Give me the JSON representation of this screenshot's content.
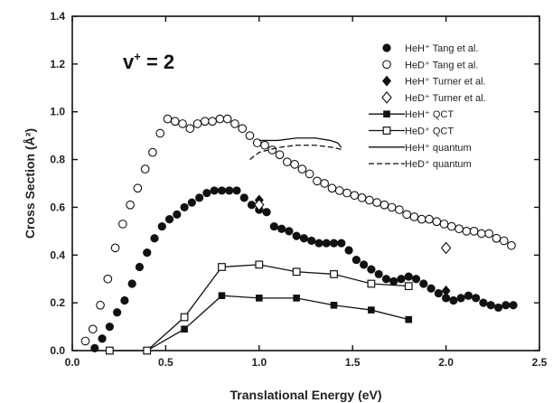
{
  "chart_data": {
    "type": "scatter",
    "title": "",
    "annotation": {
      "base": "v",
      "sup": "+",
      "rest": " = 2"
    },
    "xlabel": "Translational Energy (eV)",
    "ylabel": "Cross Section (Å²)",
    "xlim": [
      0.0,
      2.5
    ],
    "ylim": [
      0.0,
      1.4
    ],
    "xticks": [
      "0.0",
      "0.5",
      "1.0",
      "1.5",
      "2.0",
      "2.5"
    ],
    "yticks": [
      "0.0",
      "0.2",
      "0.4",
      "0.6",
      "0.8",
      "1.0",
      "1.2",
      "1.4"
    ],
    "grid": false,
    "legend_position": "top-right",
    "series": [
      {
        "name": "HeH⁺ Tang et al.",
        "marker": "filled-circle",
        "points": [
          [
            0.12,
            0.01
          ],
          [
            0.16,
            0.05
          ],
          [
            0.2,
            0.1
          ],
          [
            0.24,
            0.16
          ],
          [
            0.28,
            0.21
          ],
          [
            0.32,
            0.28
          ],
          [
            0.36,
            0.35
          ],
          [
            0.4,
            0.41
          ],
          [
            0.44,
            0.47
          ],
          [
            0.48,
            0.52
          ],
          [
            0.52,
            0.55
          ],
          [
            0.56,
            0.57
          ],
          [
            0.6,
            0.6
          ],
          [
            0.64,
            0.62
          ],
          [
            0.68,
            0.64
          ],
          [
            0.72,
            0.66
          ],
          [
            0.76,
            0.67
          ],
          [
            0.8,
            0.67
          ],
          [
            0.84,
            0.67
          ],
          [
            0.88,
            0.67
          ],
          [
            0.92,
            0.64
          ],
          [
            0.96,
            0.61
          ],
          [
            1.0,
            0.59
          ],
          [
            1.04,
            0.58
          ],
          [
            1.08,
            0.52
          ],
          [
            1.12,
            0.51
          ],
          [
            1.16,
            0.5
          ],
          [
            1.2,
            0.48
          ],
          [
            1.24,
            0.47
          ],
          [
            1.28,
            0.46
          ],
          [
            1.32,
            0.45
          ],
          [
            1.36,
            0.45
          ],
          [
            1.4,
            0.45
          ],
          [
            1.44,
            0.45
          ],
          [
            1.48,
            0.42
          ],
          [
            1.52,
            0.38
          ],
          [
            1.56,
            0.36
          ],
          [
            1.6,
            0.34
          ],
          [
            1.64,
            0.32
          ],
          [
            1.68,
            0.3
          ],
          [
            1.72,
            0.29
          ],
          [
            1.76,
            0.3
          ],
          [
            1.8,
            0.31
          ],
          [
            1.84,
            0.3
          ],
          [
            1.88,
            0.28
          ],
          [
            1.92,
            0.26
          ],
          [
            1.96,
            0.24
          ],
          [
            2.0,
            0.22
          ],
          [
            2.04,
            0.21
          ],
          [
            2.08,
            0.22
          ],
          [
            2.12,
            0.23
          ],
          [
            2.16,
            0.22
          ],
          [
            2.2,
            0.2
          ],
          [
            2.24,
            0.19
          ],
          [
            2.28,
            0.18
          ],
          [
            2.32,
            0.19
          ],
          [
            2.36,
            0.19
          ]
        ]
      },
      {
        "name": "HeD⁺ Tang et al.",
        "marker": "open-circle",
        "points": [
          [
            0.07,
            0.04
          ],
          [
            0.11,
            0.09
          ],
          [
            0.15,
            0.19
          ],
          [
            0.19,
            0.3
          ],
          [
            0.23,
            0.43
          ],
          [
            0.27,
            0.53
          ],
          [
            0.31,
            0.61
          ],
          [
            0.35,
            0.68
          ],
          [
            0.39,
            0.76
          ],
          [
            0.43,
            0.83
          ],
          [
            0.47,
            0.91
          ],
          [
            0.51,
            0.97
          ],
          [
            0.55,
            0.96
          ],
          [
            0.59,
            0.95
          ],
          [
            0.63,
            0.93
          ],
          [
            0.67,
            0.95
          ],
          [
            0.71,
            0.96
          ],
          [
            0.75,
            0.96
          ],
          [
            0.79,
            0.97
          ],
          [
            0.83,
            0.97
          ],
          [
            0.87,
            0.95
          ],
          [
            0.91,
            0.93
          ],
          [
            0.95,
            0.9
          ],
          [
            0.99,
            0.87
          ],
          [
            1.03,
            0.86
          ],
          [
            1.07,
            0.84
          ],
          [
            1.11,
            0.82
          ],
          [
            1.15,
            0.79
          ],
          [
            1.19,
            0.78
          ],
          [
            1.23,
            0.76
          ],
          [
            1.27,
            0.74
          ],
          [
            1.31,
            0.71
          ],
          [
            1.35,
            0.7
          ],
          [
            1.39,
            0.68
          ],
          [
            1.43,
            0.67
          ],
          [
            1.47,
            0.66
          ],
          [
            1.51,
            0.65
          ],
          [
            1.55,
            0.64
          ],
          [
            1.59,
            0.63
          ],
          [
            1.63,
            0.62
          ],
          [
            1.67,
            0.61
          ],
          [
            1.71,
            0.6
          ],
          [
            1.75,
            0.59
          ],
          [
            1.79,
            0.57
          ],
          [
            1.83,
            0.56
          ],
          [
            1.87,
            0.55
          ],
          [
            1.91,
            0.55
          ],
          [
            1.95,
            0.54
          ],
          [
            1.99,
            0.53
          ],
          [
            2.03,
            0.52
          ],
          [
            2.07,
            0.51
          ],
          [
            2.11,
            0.5
          ],
          [
            2.15,
            0.5
          ],
          [
            2.19,
            0.49
          ],
          [
            2.23,
            0.49
          ],
          [
            2.27,
            0.47
          ],
          [
            2.31,
            0.46
          ],
          [
            2.35,
            0.44
          ]
        ]
      },
      {
        "name": "HeH⁺ Turner et al.",
        "marker": "filled-diamond",
        "points": [
          [
            1.0,
            0.63
          ],
          [
            2.0,
            0.25
          ]
        ]
      },
      {
        "name": "HeD⁺ Turner et al.",
        "marker": "open-diamond",
        "points": [
          [
            1.0,
            0.61
          ],
          [
            2.0,
            0.43
          ]
        ]
      },
      {
        "name": "HeH⁺ QCT",
        "marker": "filled-square-line",
        "points": [
          [
            0.4,
            0.0
          ],
          [
            0.6,
            0.09
          ],
          [
            0.8,
            0.23
          ],
          [
            1.0,
            0.22
          ],
          [
            1.2,
            0.22
          ],
          [
            1.4,
            0.19
          ],
          [
            1.6,
            0.17
          ],
          [
            1.8,
            0.13
          ]
        ]
      },
      {
        "name": "HeD⁺ QCT",
        "marker": "open-square-line",
        "points": [
          [
            0.2,
            0.0
          ],
          [
            0.4,
            0.0
          ],
          [
            0.6,
            0.14
          ],
          [
            0.8,
            0.35
          ],
          [
            1.0,
            0.36
          ],
          [
            1.2,
            0.33
          ],
          [
            1.4,
            0.32
          ],
          [
            1.6,
            0.28
          ],
          [
            1.8,
            0.27
          ]
        ]
      },
      {
        "name": "HeH⁺ quantum",
        "marker": "solid-line",
        "points": [
          [
            1.0,
            0.88
          ],
          [
            1.1,
            0.88
          ],
          [
            1.2,
            0.89
          ],
          [
            1.3,
            0.89
          ],
          [
            1.38,
            0.88
          ],
          [
            1.42,
            0.87
          ],
          [
            1.44,
            0.85
          ]
        ]
      },
      {
        "name": "HeD⁺ quantum",
        "marker": "dashed-line",
        "points": [
          [
            0.95,
            0.8
          ],
          [
            1.0,
            0.83
          ],
          [
            1.1,
            0.85
          ],
          [
            1.2,
            0.86
          ],
          [
            1.3,
            0.86
          ],
          [
            1.4,
            0.85
          ],
          [
            1.45,
            0.84
          ]
        ]
      }
    ]
  }
}
